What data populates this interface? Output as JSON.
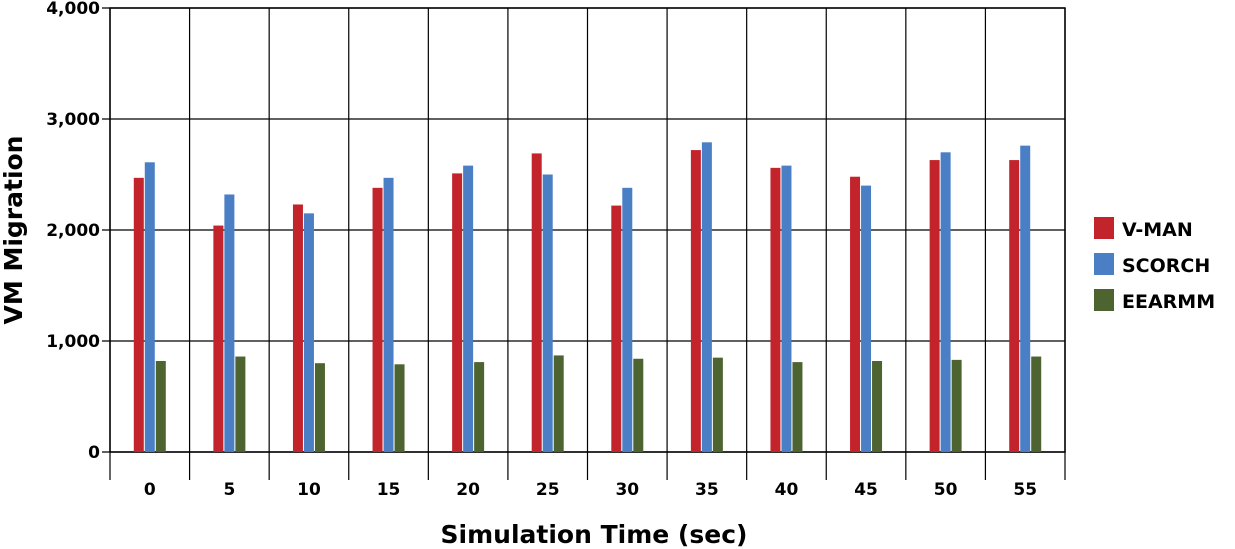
{
  "chart_data": {
    "type": "bar",
    "title": "",
    "xlabel": "Simulation Time (sec)",
    "ylabel": "VM Migration",
    "ylim": [
      0,
      4000
    ],
    "yticks": [
      0,
      1000,
      2000,
      3000,
      4000
    ],
    "ytick_labels": [
      "0",
      "1,000",
      "2,000",
      "3,000",
      "4,000"
    ],
    "categories": [
      "0",
      "5",
      "10",
      "15",
      "20",
      "25",
      "30",
      "35",
      "40",
      "45",
      "50",
      "55"
    ],
    "grid": true,
    "legend_position": "right",
    "series": [
      {
        "name": "V-MAN",
        "color": "#c3242b",
        "values": [
          2470,
          2040,
          2230,
          2380,
          2510,
          2690,
          2220,
          2720,
          2560,
          2480,
          2630,
          2630
        ]
      },
      {
        "name": "SCORCH",
        "color": "#4a7fc6",
        "values": [
          2610,
          2320,
          2150,
          2470,
          2580,
          2500,
          2380,
          2790,
          2580,
          2400,
          2700,
          2760
        ]
      },
      {
        "name": "EEARMM",
        "color": "#4e6430",
        "values": [
          820,
          860,
          800,
          790,
          810,
          870,
          840,
          850,
          810,
          820,
          830,
          860
        ]
      }
    ]
  }
}
